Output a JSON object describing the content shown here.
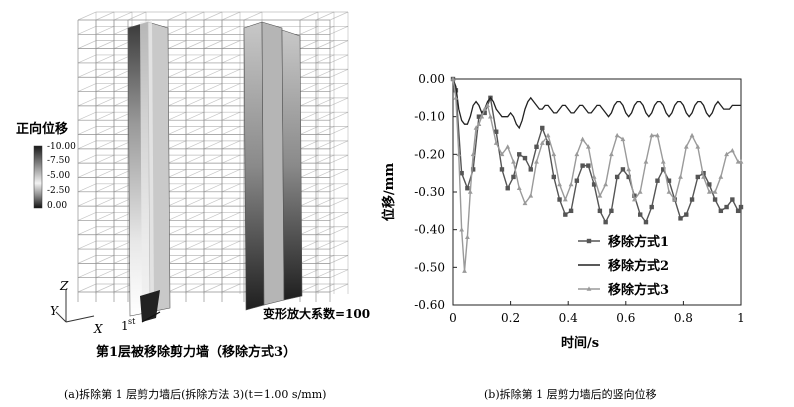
{
  "panel_a": {
    "legend_title": "正向位移",
    "legend_ticks": [
      "-10.00",
      "-7.50",
      "-5.00",
      "-2.50",
      "0.00"
    ],
    "axis_z": "Z",
    "axis_y": "Y",
    "axis_x": "X",
    "first_label": "1",
    "first_sup": "st",
    "scale_note": "变形放大系数=100",
    "title": "第1层被移除剪力墙（移除方式3）",
    "caption": "(a)拆除第 1 层剪力墙后(拆除方法 3)(t＝1.00 s/mm)"
  },
  "panel_b": {
    "caption": "(b)拆除第 1 层剪力墙后的竖向位移"
  },
  "chart_data": {
    "type": "line",
    "xlabel": "时间/s",
    "ylabel": "位移/mm",
    "xlim": [
      0,
      1
    ],
    "ylim": [
      -0.6,
      0.0
    ],
    "x_ticks": [
      "0",
      "0.2",
      "0.4",
      "0.6",
      "0.8",
      "1"
    ],
    "y_ticks": [
      "0.00",
      "-0.10",
      "-0.20",
      "-0.30",
      "-0.40",
      "-0.50",
      "-0.60"
    ],
    "legend_position": "lower-right",
    "series": [
      {
        "name": "移除方式1",
        "color": "#555555",
        "marker": "square",
        "x": [
          0,
          0.01,
          0.03,
          0.05,
          0.07,
          0.09,
          0.11,
          0.13,
          0.15,
          0.17,
          0.19,
          0.21,
          0.23,
          0.25,
          0.27,
          0.29,
          0.31,
          0.33,
          0.35,
          0.37,
          0.39,
          0.41,
          0.43,
          0.45,
          0.47,
          0.49,
          0.51,
          0.53,
          0.55,
          0.57,
          0.59,
          0.61,
          0.63,
          0.65,
          0.67,
          0.69,
          0.71,
          0.73,
          0.75,
          0.77,
          0.79,
          0.81,
          0.83,
          0.85,
          0.87,
          0.89,
          0.91,
          0.93,
          0.95,
          0.97,
          0.99,
          1.0
        ],
        "values": [
          0,
          -0.03,
          -0.25,
          -0.29,
          -0.24,
          -0.1,
          -0.09,
          -0.05,
          -0.14,
          -0.24,
          -0.29,
          -0.26,
          -0.2,
          -0.21,
          -0.24,
          -0.18,
          -0.13,
          -0.17,
          -0.26,
          -0.32,
          -0.36,
          -0.35,
          -0.27,
          -0.23,
          -0.23,
          -0.28,
          -0.35,
          -0.38,
          -0.35,
          -0.26,
          -0.24,
          -0.26,
          -0.31,
          -0.36,
          -0.38,
          -0.34,
          -0.27,
          -0.24,
          -0.27,
          -0.32,
          -0.37,
          -0.36,
          -0.32,
          -0.26,
          -0.25,
          -0.28,
          -0.32,
          -0.35,
          -0.34,
          -0.32,
          -0.35,
          -0.34
        ]
      },
      {
        "name": "移除方式2",
        "color": "#222222",
        "marker": "none",
        "x": [
          0,
          0.01,
          0.02,
          0.03,
          0.04,
          0.05,
          0.06,
          0.07,
          0.08,
          0.09,
          0.1,
          0.11,
          0.12,
          0.13,
          0.14,
          0.15,
          0.16,
          0.17,
          0.18,
          0.19,
          0.2,
          0.21,
          0.22,
          0.23,
          0.24,
          0.25,
          0.26,
          0.27,
          0.28,
          0.29,
          0.3,
          0.31,
          0.32,
          0.33,
          0.34,
          0.35,
          0.36,
          0.37,
          0.38,
          0.39,
          0.4,
          0.41,
          0.42,
          0.43,
          0.44,
          0.45,
          0.46,
          0.47,
          0.48,
          0.49,
          0.5,
          0.51,
          0.52,
          0.53,
          0.54,
          0.55,
          0.56,
          0.57,
          0.58,
          0.59,
          0.6,
          0.61,
          0.62,
          0.63,
          0.64,
          0.65,
          0.66,
          0.67,
          0.68,
          0.69,
          0.7,
          0.71,
          0.72,
          0.73,
          0.74,
          0.75,
          0.76,
          0.77,
          0.78,
          0.79,
          0.8,
          0.81,
          0.82,
          0.83,
          0.84,
          0.85,
          0.86,
          0.87,
          0.88,
          0.89,
          0.9,
          0.91,
          0.92,
          0.93,
          0.94,
          0.95,
          0.96,
          0.97,
          0.98,
          0.99,
          1.0
        ],
        "values": [
          0,
          -0.02,
          -0.08,
          -0.11,
          -0.12,
          -0.12,
          -0.1,
          -0.07,
          -0.06,
          -0.07,
          -0.09,
          -0.08,
          -0.06,
          -0.05,
          -0.06,
          -0.08,
          -0.09,
          -0.1,
          -0.1,
          -0.1,
          -0.09,
          -0.1,
          -0.12,
          -0.13,
          -0.11,
          -0.08,
          -0.06,
          -0.05,
          -0.06,
          -0.07,
          -0.08,
          -0.08,
          -0.07,
          -0.07,
          -0.08,
          -0.09,
          -0.09,
          -0.08,
          -0.07,
          -0.07,
          -0.08,
          -0.09,
          -0.09,
          -0.08,
          -0.07,
          -0.07,
          -0.08,
          -0.09,
          -0.09,
          -0.08,
          -0.07,
          -0.07,
          -0.08,
          -0.09,
          -0.1,
          -0.09,
          -0.07,
          -0.06,
          -0.06,
          -0.07,
          -0.09,
          -0.1,
          -0.09,
          -0.07,
          -0.06,
          -0.06,
          -0.07,
          -0.09,
          -0.1,
          -0.09,
          -0.07,
          -0.06,
          -0.06,
          -0.07,
          -0.09,
          -0.1,
          -0.09,
          -0.07,
          -0.06,
          -0.06,
          -0.07,
          -0.09,
          -0.1,
          -0.09,
          -0.07,
          -0.06,
          -0.06,
          -0.07,
          -0.09,
          -0.1,
          -0.09,
          -0.07,
          -0.06,
          -0.07,
          -0.08,
          -0.08,
          -0.08,
          -0.07,
          -0.07,
          -0.07,
          -0.07
        ]
      },
      {
        "name": "移除方式3",
        "color": "#9a9a9a",
        "marker": "triangle",
        "x": [
          0,
          0.01,
          0.02,
          0.03,
          0.04,
          0.05,
          0.06,
          0.07,
          0.08,
          0.09,
          0.1,
          0.11,
          0.12,
          0.13,
          0.15,
          0.17,
          0.19,
          0.21,
          0.23,
          0.25,
          0.27,
          0.29,
          0.31,
          0.33,
          0.35,
          0.37,
          0.39,
          0.41,
          0.43,
          0.45,
          0.47,
          0.49,
          0.51,
          0.53,
          0.55,
          0.57,
          0.59,
          0.61,
          0.63,
          0.65,
          0.67,
          0.69,
          0.71,
          0.73,
          0.75,
          0.77,
          0.79,
          0.81,
          0.83,
          0.85,
          0.87,
          0.89,
          0.91,
          0.93,
          0.95,
          0.97,
          0.99,
          1.0
        ],
        "values": [
          0,
          -0.05,
          -0.2,
          -0.4,
          -0.51,
          -0.42,
          -0.3,
          -0.2,
          -0.13,
          -0.12,
          -0.1,
          -0.08,
          -0.07,
          -0.1,
          -0.17,
          -0.2,
          -0.18,
          -0.22,
          -0.29,
          -0.33,
          -0.31,
          -0.22,
          -0.17,
          -0.15,
          -0.2,
          -0.28,
          -0.32,
          -0.28,
          -0.2,
          -0.16,
          -0.18,
          -0.26,
          -0.31,
          -0.28,
          -0.2,
          -0.15,
          -0.16,
          -0.24,
          -0.32,
          -0.3,
          -0.22,
          -0.15,
          -0.15,
          -0.22,
          -0.3,
          -0.32,
          -0.26,
          -0.18,
          -0.15,
          -0.18,
          -0.26,
          -0.3,
          -0.3,
          -0.26,
          -0.2,
          -0.19,
          -0.22,
          -0.22
        ]
      }
    ]
  }
}
